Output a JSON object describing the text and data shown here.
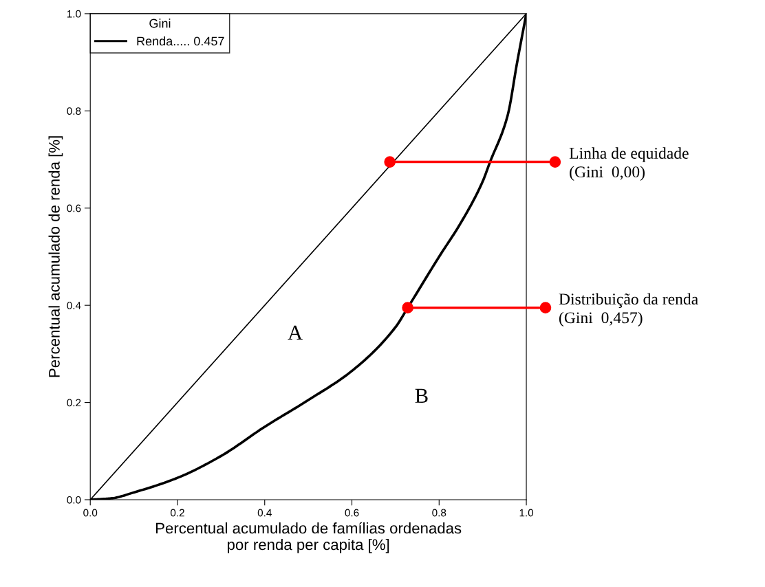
{
  "chart_data": {
    "type": "line",
    "xlabel": "Percentual acumulado de famílias ordenadas\npor renda per capita [%]",
    "ylabel": "Percentual acumulado de renda [%]",
    "legend_title": "Gini",
    "legend": "top left",
    "grid": false,
    "marker": "none",
    "line_style": "solid",
    "xlim": [
      0,
      1
    ],
    "ylim": [
      0,
      1
    ],
    "xticks": [
      {
        "value": 0,
        "label": "0.0"
      },
      {
        "value": 0.2,
        "label": "0.2"
      },
      {
        "value": 0.4,
        "label": "0.4"
      },
      {
        "value": 0.6,
        "label": "0.6"
      },
      {
        "value": 0.8,
        "label": "0.8"
      },
      {
        "value": 1,
        "label": "1.0"
      }
    ],
    "yticks": [
      {
        "value": 0,
        "label": "0.0"
      },
      {
        "value": 0.2,
        "label": "0.2"
      },
      {
        "value": 0.4,
        "label": "0.4"
      },
      {
        "value": 0.6,
        "label": "0.6"
      },
      {
        "value": 0.8,
        "label": "0.8"
      },
      {
        "value": 1,
        "label": "1.0"
      }
    ],
    "series": [
      {
        "color": "#000000",
        "x": [
          0,
          1
        ],
        "values": [
          0,
          1
        ]
      },
      {
        "name": "Renda..... 0.457",
        "color": "#000000",
        "x": [
          0,
          0.05,
          0.1,
          0.2,
          0.3,
          0.4,
          0.5,
          0.6,
          0.7,
          0.728,
          0.8,
          0.85,
          0.9,
          0.916,
          0.957,
          0.979,
          1.0
        ],
        "values": [
          0,
          0.003,
          0.015,
          0.045,
          0.09,
          0.15,
          0.205,
          0.265,
          0.355,
          0.395,
          0.5,
          0.57,
          0.655,
          0.693,
          0.79,
          0.9,
          1.0
        ]
      }
    ],
    "annotations": [
      {
        "text": "Linha de equidade\n(Gini  0,00)",
        "x": 0.687,
        "y": 0.695
      },
      {
        "text": "Distribuição da renda\n(Gini  0,457)",
        "x": 0.728,
        "y": 0.395
      },
      "A",
      "B"
    ]
  }
}
